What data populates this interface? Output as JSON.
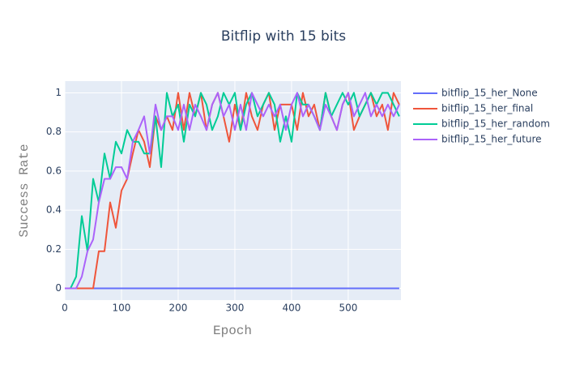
{
  "chart_data": {
    "type": "line",
    "title": "Bitflip with 15 bits",
    "x_label": "Epoch",
    "y_label": "Success Rate",
    "x": [
      0,
      10,
      20,
      30,
      40,
      50,
      60,
      70,
      80,
      90,
      100,
      110,
      120,
      130,
      140,
      150,
      160,
      170,
      180,
      190,
      200,
      210,
      220,
      230,
      240,
      250,
      260,
      270,
      280,
      290,
      300,
      310,
      320,
      330,
      340,
      350,
      360,
      370,
      380,
      390,
      400,
      410,
      420,
      430,
      440,
      450,
      460,
      470,
      480,
      490,
      500,
      510,
      520,
      530,
      540,
      550,
      560,
      570,
      580,
      590
    ],
    "xlim": [
      0,
      593
    ],
    "xticks": [
      0,
      100,
      200,
      300,
      400,
      500
    ],
    "ylim": [
      -0.06,
      1.06
    ],
    "yticks": [
      0,
      0.2,
      0.4,
      0.6,
      0.8,
      1
    ],
    "grid": true,
    "legend": "right",
    "series": [
      {
        "name": "bitflip_15_her_None",
        "color": "#636efa",
        "values": [
          0,
          0,
          0,
          0,
          0,
          0,
          0,
          0,
          0,
          0,
          0,
          0,
          0,
          0,
          0,
          0,
          0,
          0,
          0,
          0,
          0,
          0,
          0,
          0,
          0,
          0,
          0,
          0,
          0,
          0,
          0,
          0,
          0,
          0,
          0,
          0,
          0,
          0,
          0,
          0,
          0,
          0,
          0,
          0,
          0,
          0,
          0,
          0,
          0,
          0,
          0,
          0,
          0,
          0,
          0,
          0,
          0,
          0,
          0,
          0
        ]
      },
      {
        "name": "bitflip_15_her_final",
        "color": "#ef553b",
        "values": [
          0,
          0,
          0,
          0,
          0,
          0,
          0.19,
          0.19,
          0.44,
          0.31,
          0.5,
          0.56,
          0.69,
          0.81,
          0.75,
          0.62,
          0.88,
          0.81,
          0.88,
          0.81,
          1,
          0.81,
          1,
          0.88,
          1,
          0.81,
          0.94,
          1,
          0.88,
          0.75,
          0.94,
          0.81,
          1,
          0.88,
          0.81,
          0.94,
          1,
          0.81,
          0.94,
          0.94,
          0.94,
          0.81,
          1,
          0.88,
          0.94,
          0.81,
          1,
          0.88,
          0.81,
          0.94,
          1,
          0.81,
          0.88,
          0.94,
          1,
          0.88,
          0.94,
          0.81,
          1,
          0.94
        ]
      },
      {
        "name": "bitflip_15_her_random",
        "color": "#00cc96",
        "values": [
          0,
          0,
          0.06,
          0.37,
          0.19,
          0.56,
          0.44,
          0.69,
          0.56,
          0.75,
          0.69,
          0.81,
          0.75,
          0.75,
          0.69,
          0.69,
          0.88,
          0.62,
          1,
          0.88,
          0.94,
          0.75,
          0.94,
          0.88,
          1,
          0.94,
          0.81,
          0.88,
          1,
          0.94,
          1,
          0.81,
          0.94,
          1,
          0.88,
          0.94,
          1,
          0.94,
          0.75,
          0.88,
          0.75,
          1,
          0.94,
          0.94,
          0.88,
          0.81,
          1,
          0.88,
          0.94,
          1,
          0.94,
          1,
          0.88,
          0.94,
          1,
          0.94,
          1,
          1,
          0.94,
          0.88
        ]
      },
      {
        "name": "bitflip_15_her_future",
        "color": "#ab63fa",
        "values": [
          0,
          0,
          0,
          0.06,
          0.19,
          0.25,
          0.44,
          0.56,
          0.56,
          0.62,
          0.62,
          0.56,
          0.75,
          0.81,
          0.88,
          0.69,
          0.94,
          0.81,
          0.88,
          0.88,
          0.81,
          0.94,
          0.81,
          0.94,
          0.88,
          0.81,
          0.94,
          1,
          0.88,
          0.94,
          0.81,
          0.94,
          0.81,
          1,
          0.94,
          0.88,
          0.94,
          0.88,
          0.94,
          0.81,
          0.94,
          1,
          0.88,
          0.94,
          0.88,
          0.81,
          0.94,
          0.88,
          0.81,
          0.94,
          1,
          0.88,
          0.94,
          1,
          0.88,
          0.94,
          0.88,
          0.94,
          0.88,
          0.94
        ]
      }
    ]
  }
}
